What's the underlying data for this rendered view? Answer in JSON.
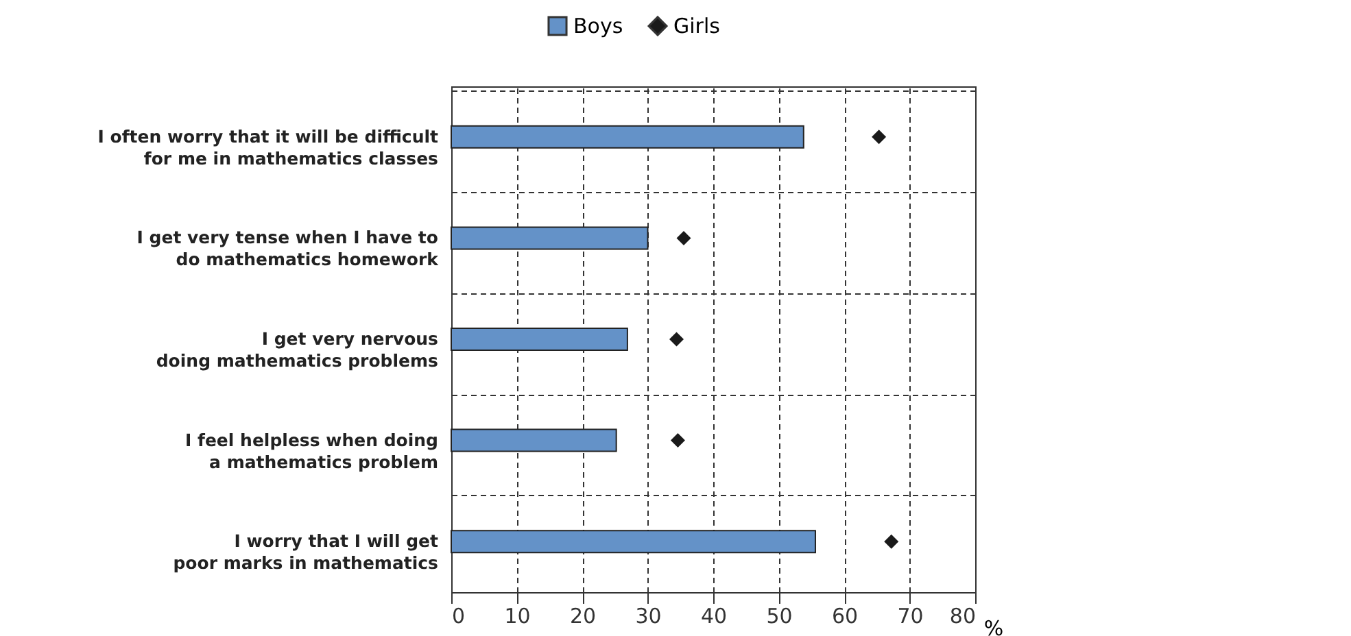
{
  "chart_data": {
    "type": "bar",
    "orientation": "horizontal",
    "categories": [
      "I often worry that it will be difficult\nfor me in mathematics classes",
      "I get very tense when I have to\ndo mathematics homework",
      "I get very nervous\ndoing mathematics problems",
      "I feel helpless when doing\na mathematics problem",
      "I worry that I will get\npoor marks in mathematics"
    ],
    "series": [
      {
        "name": "Boys",
        "color": "#6492c8",
        "values": [
          53.8,
          30.0,
          26.9,
          25.2,
          55.6
        ]
      },
      {
        "name": "Girls",
        "type": "scatter",
        "color": "#1a1a1a",
        "values": [
          65.3,
          35.5,
          34.4,
          34.6,
          67.2
        ]
      }
    ],
    "xlabel": "%",
    "xlim": [
      0,
      80
    ],
    "xticks": [
      0,
      10,
      20,
      30,
      40,
      50,
      60,
      70,
      80
    ],
    "grid": true,
    "legend": "top",
    "marker": "diamond"
  }
}
